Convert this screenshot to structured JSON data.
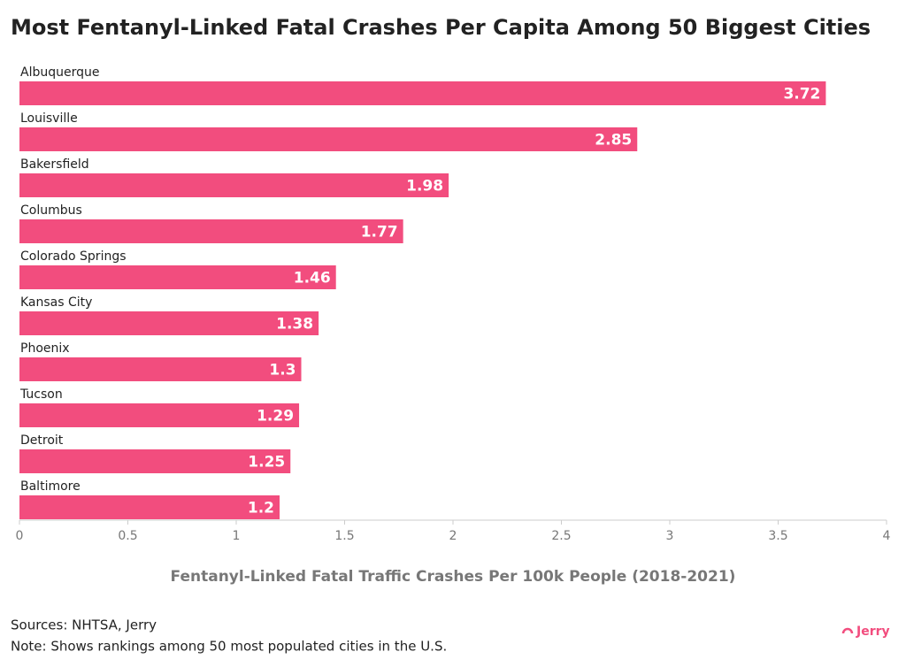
{
  "chart_data": {
    "type": "bar",
    "orientation": "horizontal",
    "title": "Most Fentanyl-Linked Fatal Crashes Per Capita Among 50 Biggest Cities",
    "categories": [
      "Albuquerque",
      "Louisville",
      "Bakersfield",
      "Columbus",
      "Colorado Springs",
      "Kansas City",
      "Phoenix",
      "Tucson",
      "Detroit",
      "Baltimore"
    ],
    "values": [
      3.72,
      2.85,
      1.98,
      1.77,
      1.46,
      1.38,
      1.3,
      1.29,
      1.25,
      1.2
    ],
    "color": "#f24d7e",
    "xlabel": "Fentanyl-Linked Fatal Traffic Crashes Per 100k People (2018-2021)",
    "xlim": [
      0,
      4
    ],
    "xticks": [
      0,
      0.5,
      1,
      1.5,
      2,
      2.5,
      3,
      3.5,
      4
    ],
    "grid": false,
    "source": "Sources: NHTSA, Jerry",
    "note": "Note: Shows rankings among 50 most populated cities in the U.S."
  },
  "brand": "Jerry"
}
